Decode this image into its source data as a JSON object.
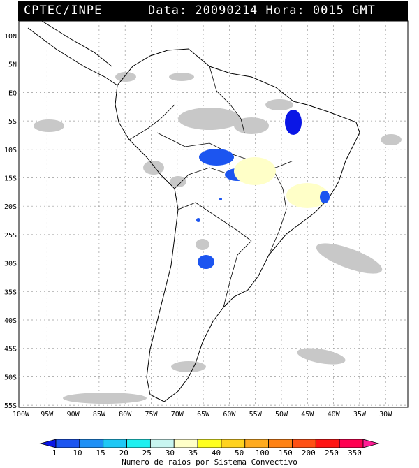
{
  "header": {
    "source": "CPTEC/INPE",
    "datetime": "Data: 20090214 Hora: 0015 GMT"
  },
  "map": {
    "lat_labels": [
      "10N",
      "5N",
      "EQ",
      "5S",
      "10S",
      "15S",
      "20S",
      "25S",
      "30S",
      "35S",
      "40S",
      "45S",
      "50S",
      "55S"
    ],
    "lon_labels": [
      "100W",
      "95W",
      "90W",
      "85W",
      "80W",
      "75W",
      "70W",
      "65W",
      "60W",
      "55W",
      "50W",
      "45W",
      "40W",
      "35W",
      "30W"
    ],
    "lat_range": [
      -56,
      13
    ],
    "lon_range": [
      -100,
      -25
    ],
    "grid": true
  },
  "colorbar": {
    "title": "Numero de raios por Sistema Convectivo",
    "labels": [
      "1",
      "10",
      "15",
      "20",
      "25",
      "30",
      "35",
      "40",
      "50",
      "100",
      "150",
      "200",
      "250",
      "350"
    ],
    "colors": [
      "#0a16e6",
      "#1c55f0",
      "#1e90f5",
      "#1ec8f5",
      "#1ef0f0",
      "#c8f5f0",
      "#ffffc8",
      "#ffff1e",
      "#ffd21e",
      "#ffaa1e",
      "#ff8214",
      "#ff5014",
      "#ff1414",
      "#ff0050",
      "#ff1e96"
    ]
  }
}
